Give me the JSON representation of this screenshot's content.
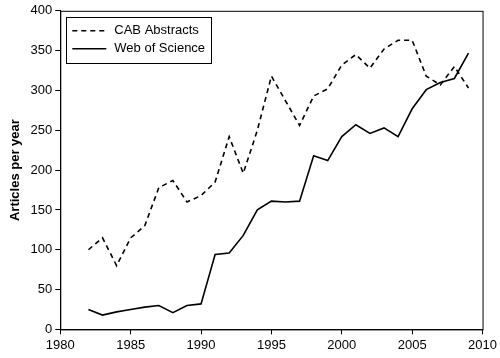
{
  "chart_data": {
    "type": "line",
    "y_label": "Articles per year",
    "x": [
      1982,
      1983,
      1984,
      1985,
      1986,
      1987,
      1988,
      1989,
      1990,
      1991,
      1992,
      1993,
      1994,
      1995,
      1996,
      1997,
      1998,
      1999,
      2000,
      2001,
      2002,
      2003,
      2004,
      2005,
      2006,
      2007,
      2008,
      2009
    ],
    "series": [
      {
        "name": "CAB Abstracts",
        "color": "#000000",
        "line_style": "dashed",
        "values": [
          100,
          115,
          80,
          115,
          130,
          178,
          187,
          160,
          168,
          185,
          242,
          196,
          250,
          318,
          287,
          256,
          293,
          302,
          332,
          345,
          328,
          352,
          363,
          363,
          318,
          307,
          330,
          303
        ]
      },
      {
        "name": "Web of Science",
        "color": "#000000",
        "line_style": "solid",
        "values": [
          25,
          18,
          22,
          25,
          28,
          30,
          21,
          30,
          32,
          94,
          96,
          118,
          150,
          161,
          160,
          161,
          218,
          212,
          242,
          257,
          246,
          253,
          242,
          277,
          301,
          310,
          315,
          347
        ]
      }
    ],
    "xlim": [
      1980,
      2010
    ],
    "xticks": [
      1980,
      1985,
      1990,
      1995,
      2000,
      2005,
      2010
    ],
    "ylim": [
      0,
      400
    ],
    "yticks": [
      0,
      50,
      100,
      150,
      200,
      250,
      300,
      350,
      400
    ],
    "grid": false,
    "legend": "upper left"
  }
}
